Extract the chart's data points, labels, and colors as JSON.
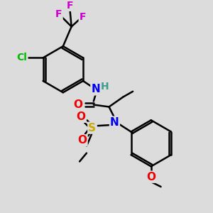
{
  "bg_color": "#dcdcdc",
  "atom_colors": {
    "C": "#000000",
    "H": "#3d9c8a",
    "N": "#0000ee",
    "O": "#ee0000",
    "F": "#cc00cc",
    "Cl": "#00bb00",
    "S": "#ccaa00"
  },
  "bond_color": "#000000",
  "bond_width": 1.8,
  "font_size": 11,
  "small_font_size": 10
}
